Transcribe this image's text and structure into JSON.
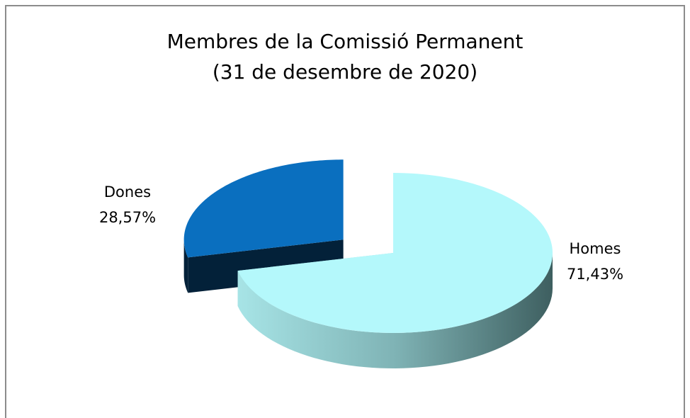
{
  "chart_data": {
    "type": "pie3d",
    "title": [
      "Membres de la Comissió Permanent",
      "(31 de desembre de 2020)"
    ],
    "categories": [
      "Homes",
      "Dones"
    ],
    "values": [
      71.43,
      28.57
    ],
    "value_labels": [
      "71,43%",
      "28,57%"
    ],
    "colors": [
      "#b4f8fb",
      "#0a6fbf"
    ]
  }
}
